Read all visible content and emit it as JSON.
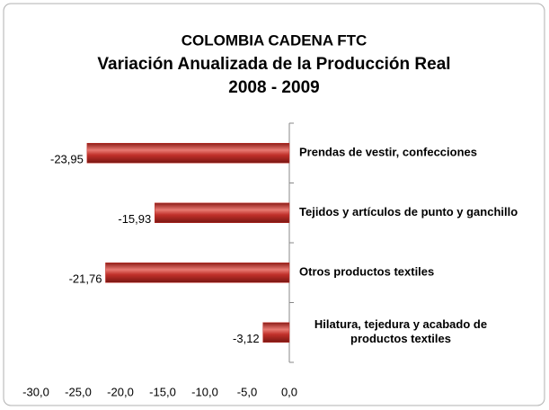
{
  "chart_data": {
    "type": "barh",
    "title": [
      "COLOMBIA CADENA FTC",
      "Variación Anualizada de la Producción Real",
      "2008 - 2009"
    ],
    "categories": [
      "Prendas de vestir, confecciones",
      "Tejidos y artículos de punto y ganchillo",
      "Otros productos textiles",
      [
        "Hilatura, tejedura  y acabado de",
        "productos textiles"
      ]
    ],
    "values": [
      -23.95,
      -15.93,
      -21.76,
      -3.12
    ],
    "value_labels": [
      "-23,95",
      "-15,93",
      "-21,76",
      "-3,12"
    ],
    "color": "#c0302a",
    "xlim": [
      -30,
      0
    ],
    "xticks": [
      {
        "value": -30,
        "label": "-30,0"
      },
      {
        "value": -25,
        "label": "-25,0"
      },
      {
        "value": -20,
        "label": "-20,0"
      },
      {
        "value": -15,
        "label": "-15,0"
      },
      {
        "value": -10,
        "label": "-10,0"
      },
      {
        "value": -5,
        "label": "-5,0"
      },
      {
        "value": 0,
        "label": "0,0"
      }
    ]
  }
}
